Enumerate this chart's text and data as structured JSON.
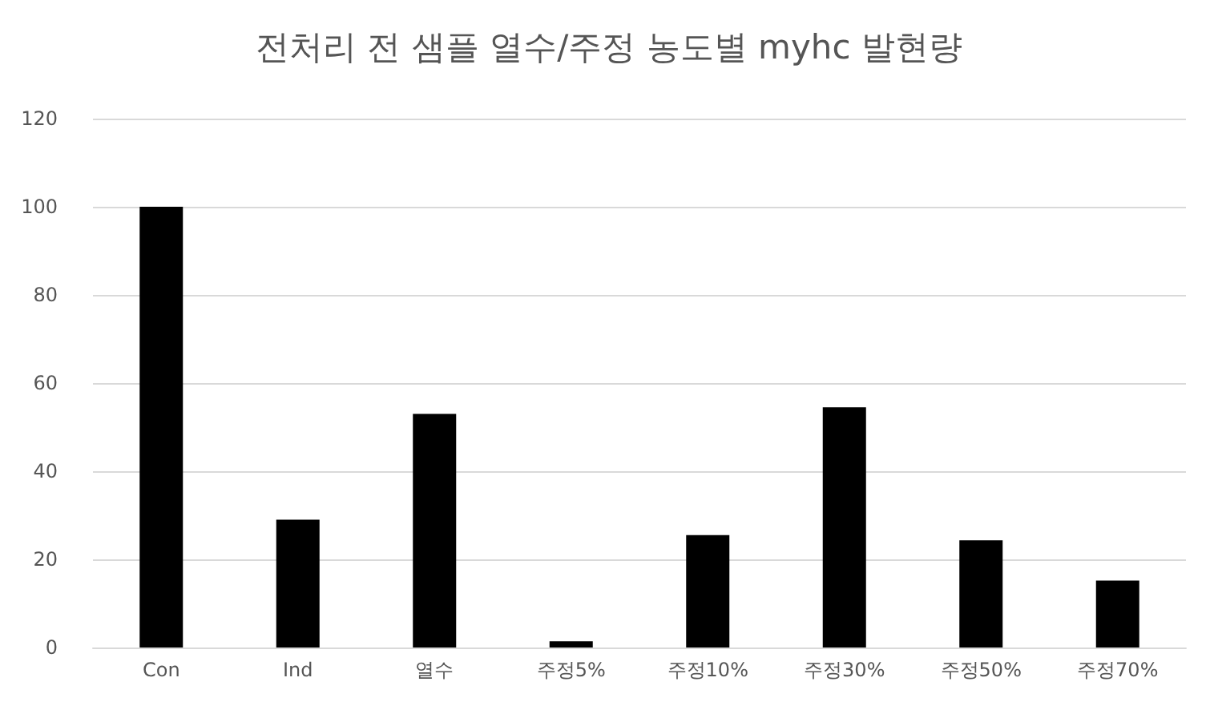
{
  "chart_data": {
    "type": "bar",
    "title": "전처리 전 샘플 열수/주정 농도별 myhc 발현량",
    "categories": [
      "Con",
      "Ind",
      "열수",
      "주정5%",
      "주정10%",
      "주정30%",
      "주정50%",
      "주정70%"
    ],
    "values": [
      100,
      29,
      53,
      1.4,
      25.5,
      54.5,
      24.3,
      15.2
    ],
    "color": "#000000",
    "ylim": [
      0,
      120
    ],
    "yticks": [
      0,
      20,
      40,
      60,
      80,
      100,
      120
    ],
    "grid": "y"
  }
}
